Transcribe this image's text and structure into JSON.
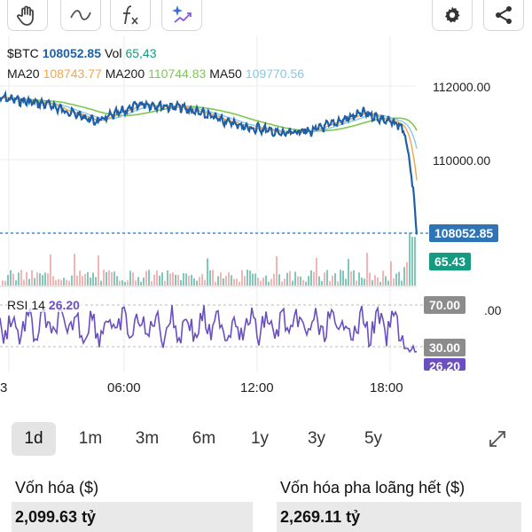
{
  "toolbar": {
    "icons": [
      "hand-icon",
      "wave-icon",
      "function-icon",
      "sparkle-chart-icon",
      "gear-icon",
      "share-icon"
    ]
  },
  "legend": {
    "symbol": "$BTC",
    "price": "108052.85",
    "vol_label": "Vol",
    "vol_value": "65,43",
    "ma20_label": "MA20",
    "ma20_value": "108743.77",
    "ma200_label": "MA200",
    "ma200_value": "110744.83",
    "ma50_label": "MA50",
    "ma50_value": "109770.56"
  },
  "price_axis": {
    "tick_high": "112000.00",
    "tick_mid": "110000.00",
    "current_price_tag": "108052.85",
    "volume_tag": "65.43",
    "hidden_tick": ".00"
  },
  "rsi": {
    "label": "RSI",
    "period": "14",
    "value": "26.20",
    "upper_tag": "70.00",
    "lower_tag": "30.00",
    "current_tag": "26.20"
  },
  "time_axis": [
    "3",
    "06:00",
    "12:00",
    "18:00"
  ],
  "timeframes": [
    {
      "label": "1d",
      "active": true
    },
    {
      "label": "1m",
      "active": false
    },
    {
      "label": "3m",
      "active": false
    },
    {
      "label": "6m",
      "active": false
    },
    {
      "label": "1y",
      "active": false
    },
    {
      "label": "3y",
      "active": false
    },
    {
      "label": "5y",
      "active": false
    }
  ],
  "stats": {
    "market_cap_label": "Vốn hóa ($)",
    "market_cap_value": "2,099.63 tỷ",
    "fdv_label": "Vốn hóa pha loãng hết ($)",
    "fdv_value": "2,269.11 tỷ"
  },
  "colors": {
    "price": "#1e5fa8",
    "ma20": "#f0a848",
    "ma200": "#7ec850",
    "ma50": "#88c8e8",
    "vol_tag": "#169a82",
    "rsi_line": "#6a4fc0",
    "price_tag": "#2f74b5"
  }
}
